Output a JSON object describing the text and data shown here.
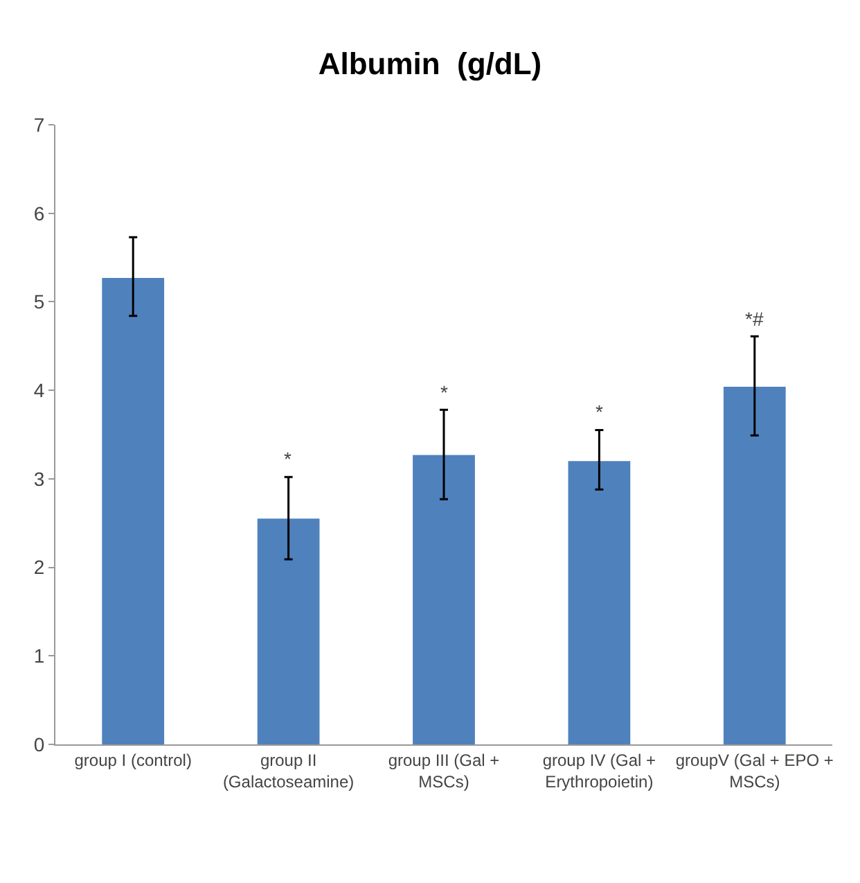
{
  "chart_data": {
    "type": "bar",
    "title": "Albumin  (g/dL)",
    "categories": [
      "group I (control)",
      "group II (Galactoseamine)",
      "group III (Gal + MSCs)",
      "group IV (Gal + Erythropoietin)",
      "groupV (Gal + EPO + MSCs)"
    ],
    "values": [
      5.27,
      2.55,
      3.27,
      3.2,
      4.04
    ],
    "errors": [
      [
        4.84,
        5.73
      ],
      [
        2.09,
        3.02
      ],
      [
        2.77,
        3.78
      ],
      [
        2.88,
        3.55
      ],
      [
        3.49,
        4.61
      ]
    ],
    "color": "#4f81bd",
    "ylim": [
      0,
      7
    ],
    "yticks": [
      0,
      1,
      2,
      3,
      4,
      5,
      6,
      7
    ],
    "grid": false,
    "value_labels": [
      null,
      "*",
      "*",
      "*",
      "*#"
    ]
  }
}
